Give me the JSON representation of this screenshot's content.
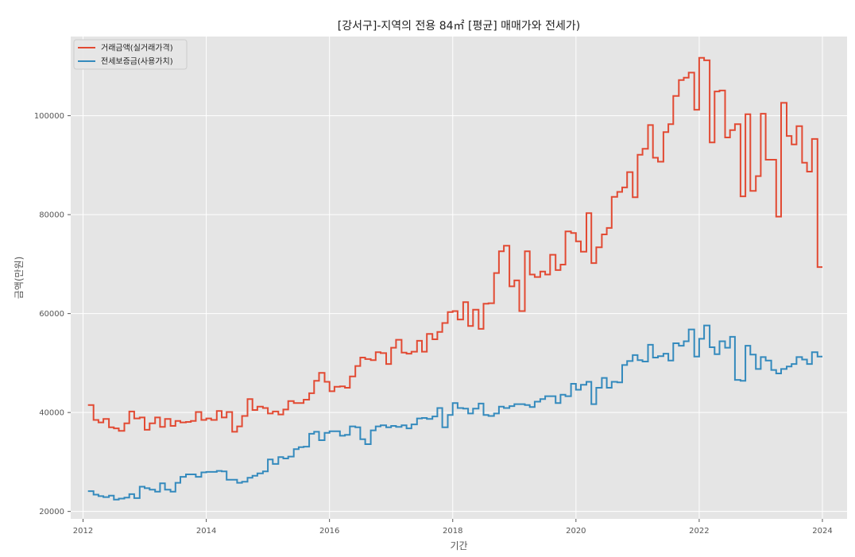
{
  "chart_data": {
    "type": "line",
    "step": true,
    "title": "[강서구]-지역의 전용 84㎡ [평균] 매매가와 전세가)",
    "xlabel": "기간",
    "ylabel": "금액(만원)",
    "xlim": [
      2011.8,
      2024.4
    ],
    "ylim": [
      18500,
      116000
    ],
    "x_ticks": [
      2012,
      2014,
      2016,
      2018,
      2020,
      2022,
      2024
    ],
    "y_ticks": [
      20000,
      40000,
      60000,
      80000,
      100000
    ],
    "grid": true,
    "legend_position": "top-left",
    "series": [
      {
        "name": "거래금액(실거래가격)",
        "color": "#E24A33",
        "points": [
          [
            2012.08,
            41500
          ],
          [
            2012.17,
            38500
          ],
          [
            2012.25,
            38000
          ],
          [
            2012.33,
            38700
          ],
          [
            2012.42,
            37000
          ],
          [
            2012.5,
            36800
          ],
          [
            2012.58,
            36300
          ],
          [
            2012.67,
            37800
          ],
          [
            2012.75,
            40200
          ],
          [
            2012.83,
            38800
          ],
          [
            2012.92,
            39000
          ],
          [
            2013.0,
            36500
          ],
          [
            2013.08,
            37800
          ],
          [
            2013.17,
            39000
          ],
          [
            2013.25,
            37100
          ],
          [
            2013.33,
            38700
          ],
          [
            2013.42,
            37300
          ],
          [
            2013.5,
            38300
          ],
          [
            2013.58,
            38000
          ],
          [
            2013.67,
            38100
          ],
          [
            2013.75,
            38300
          ],
          [
            2013.83,
            40100
          ],
          [
            2013.92,
            38500
          ],
          [
            2014.0,
            38800
          ],
          [
            2014.08,
            38500
          ],
          [
            2014.17,
            40300
          ],
          [
            2014.25,
            39000
          ],
          [
            2014.33,
            40100
          ],
          [
            2014.42,
            36100
          ],
          [
            2014.5,
            37200
          ],
          [
            2014.58,
            39300
          ],
          [
            2014.67,
            42700
          ],
          [
            2014.75,
            40500
          ],
          [
            2014.83,
            41200
          ],
          [
            2014.92,
            40900
          ],
          [
            2015.0,
            39800
          ],
          [
            2015.08,
            40200
          ],
          [
            2015.17,
            39600
          ],
          [
            2015.25,
            40600
          ],
          [
            2015.33,
            42300
          ],
          [
            2015.42,
            41900
          ],
          [
            2015.5,
            41900
          ],
          [
            2015.58,
            42600
          ],
          [
            2015.67,
            43900
          ],
          [
            2015.75,
            46400
          ],
          [
            2015.83,
            48000
          ],
          [
            2015.92,
            46200
          ],
          [
            2016.0,
            44300
          ],
          [
            2016.08,
            45200
          ],
          [
            2016.17,
            45300
          ],
          [
            2016.25,
            45000
          ],
          [
            2016.33,
            47300
          ],
          [
            2016.42,
            49400
          ],
          [
            2016.5,
            51100
          ],
          [
            2016.58,
            50800
          ],
          [
            2016.67,
            50600
          ],
          [
            2016.75,
            52200
          ],
          [
            2016.83,
            52000
          ],
          [
            2016.92,
            49800
          ],
          [
            2017.0,
            53100
          ],
          [
            2017.08,
            54700
          ],
          [
            2017.17,
            52100
          ],
          [
            2017.25,
            51900
          ],
          [
            2017.33,
            52300
          ],
          [
            2017.42,
            54500
          ],
          [
            2017.5,
            52300
          ],
          [
            2017.58,
            55900
          ],
          [
            2017.67,
            54800
          ],
          [
            2017.75,
            56300
          ],
          [
            2017.83,
            58100
          ],
          [
            2017.92,
            60300
          ],
          [
            2018.0,
            60500
          ],
          [
            2018.08,
            58800
          ],
          [
            2018.17,
            62300
          ],
          [
            2018.25,
            57500
          ],
          [
            2018.33,
            60800
          ],
          [
            2018.42,
            56900
          ],
          [
            2018.5,
            62000
          ],
          [
            2018.58,
            62100
          ],
          [
            2018.67,
            68200
          ],
          [
            2018.75,
            72600
          ],
          [
            2018.83,
            73700
          ],
          [
            2018.92,
            65500
          ],
          [
            2019.0,
            66700
          ],
          [
            2019.08,
            60500
          ],
          [
            2019.17,
            72600
          ],
          [
            2019.25,
            67900
          ],
          [
            2019.33,
            67400
          ],
          [
            2019.42,
            68500
          ],
          [
            2019.5,
            67900
          ],
          [
            2019.58,
            71900
          ],
          [
            2019.67,
            68800
          ],
          [
            2019.75,
            69900
          ],
          [
            2019.83,
            76600
          ],
          [
            2019.92,
            76300
          ],
          [
            2020.0,
            74600
          ],
          [
            2020.08,
            72500
          ],
          [
            2020.17,
            80300
          ],
          [
            2020.25,
            70200
          ],
          [
            2020.33,
            73400
          ],
          [
            2020.42,
            76000
          ],
          [
            2020.5,
            77300
          ],
          [
            2020.58,
            83600
          ],
          [
            2020.67,
            84600
          ],
          [
            2020.75,
            85500
          ],
          [
            2020.83,
            88600
          ],
          [
            2020.92,
            83500
          ],
          [
            2021.0,
            92100
          ],
          [
            2021.08,
            93300
          ],
          [
            2021.17,
            98100
          ],
          [
            2021.25,
            91500
          ],
          [
            2021.33,
            90700
          ],
          [
            2021.42,
            96700
          ],
          [
            2021.5,
            98300
          ],
          [
            2021.58,
            104000
          ],
          [
            2021.67,
            107200
          ],
          [
            2021.75,
            107700
          ],
          [
            2021.83,
            108700
          ],
          [
            2021.92,
            101200
          ],
          [
            2022.0,
            111700
          ],
          [
            2022.08,
            111200
          ],
          [
            2022.17,
            94600
          ],
          [
            2022.25,
            104900
          ],
          [
            2022.33,
            105100
          ],
          [
            2022.42,
            95600
          ],
          [
            2022.5,
            97100
          ],
          [
            2022.58,
            98300
          ],
          [
            2022.67,
            83700
          ],
          [
            2022.75,
            100300
          ],
          [
            2022.83,
            84800
          ],
          [
            2022.92,
            87800
          ],
          [
            2023.0,
            100400
          ],
          [
            2023.08,
            91100
          ],
          [
            2023.17,
            91100
          ],
          [
            2023.25,
            79600
          ],
          [
            2023.33,
            102600
          ],
          [
            2023.42,
            95900
          ],
          [
            2023.5,
            94200
          ],
          [
            2023.58,
            97900
          ],
          [
            2023.67,
            90500
          ],
          [
            2023.75,
            88700
          ],
          [
            2023.83,
            95300
          ],
          [
            2023.92,
            69400
          ],
          [
            2024.0,
            69400
          ]
        ]
      },
      {
        "name": "전세보증금(사용가치)",
        "color": "#348ABD",
        "points": [
          [
            2012.08,
            24100
          ],
          [
            2012.17,
            23400
          ],
          [
            2012.25,
            23100
          ],
          [
            2012.33,
            22900
          ],
          [
            2012.42,
            23200
          ],
          [
            2012.5,
            22400
          ],
          [
            2012.58,
            22600
          ],
          [
            2012.67,
            22800
          ],
          [
            2012.75,
            23500
          ],
          [
            2012.83,
            22700
          ],
          [
            2012.92,
            25000
          ],
          [
            2013.0,
            24700
          ],
          [
            2013.08,
            24400
          ],
          [
            2013.17,
            24000
          ],
          [
            2013.25,
            25700
          ],
          [
            2013.33,
            24400
          ],
          [
            2013.42,
            24000
          ],
          [
            2013.5,
            25800
          ],
          [
            2013.58,
            27000
          ],
          [
            2013.67,
            27500
          ],
          [
            2013.75,
            27500
          ],
          [
            2013.83,
            27000
          ],
          [
            2013.92,
            27900
          ],
          [
            2014.0,
            28000
          ],
          [
            2014.08,
            28000
          ],
          [
            2014.17,
            28200
          ],
          [
            2014.25,
            28100
          ],
          [
            2014.33,
            26400
          ],
          [
            2014.42,
            26400
          ],
          [
            2014.5,
            25800
          ],
          [
            2014.58,
            26000
          ],
          [
            2014.67,
            26800
          ],
          [
            2014.75,
            27200
          ],
          [
            2014.83,
            27700
          ],
          [
            2014.92,
            28100
          ],
          [
            2015.0,
            30500
          ],
          [
            2015.08,
            29600
          ],
          [
            2015.17,
            31000
          ],
          [
            2015.25,
            30700
          ],
          [
            2015.33,
            31100
          ],
          [
            2015.42,
            32600
          ],
          [
            2015.5,
            33000
          ],
          [
            2015.58,
            33100
          ],
          [
            2015.67,
            35700
          ],
          [
            2015.75,
            36100
          ],
          [
            2015.83,
            34400
          ],
          [
            2015.92,
            35900
          ],
          [
            2016.0,
            36200
          ],
          [
            2016.08,
            36200
          ],
          [
            2016.17,
            35300
          ],
          [
            2016.25,
            35500
          ],
          [
            2016.33,
            37200
          ],
          [
            2016.42,
            37000
          ],
          [
            2016.5,
            34600
          ],
          [
            2016.58,
            33600
          ],
          [
            2016.67,
            36400
          ],
          [
            2016.75,
            37200
          ],
          [
            2016.83,
            37400
          ],
          [
            2016.92,
            37000
          ],
          [
            2017.0,
            37300
          ],
          [
            2017.08,
            37100
          ],
          [
            2017.17,
            37400
          ],
          [
            2017.25,
            36800
          ],
          [
            2017.33,
            37600
          ],
          [
            2017.42,
            38800
          ],
          [
            2017.5,
            38900
          ],
          [
            2017.58,
            38700
          ],
          [
            2017.67,
            39200
          ],
          [
            2017.75,
            40900
          ],
          [
            2017.83,
            37000
          ],
          [
            2017.92,
            39500
          ],
          [
            2018.0,
            41900
          ],
          [
            2018.08,
            40900
          ],
          [
            2018.17,
            40800
          ],
          [
            2018.25,
            39800
          ],
          [
            2018.33,
            40800
          ],
          [
            2018.42,
            41800
          ],
          [
            2018.5,
            39500
          ],
          [
            2018.58,
            39300
          ],
          [
            2018.67,
            39800
          ],
          [
            2018.75,
            41200
          ],
          [
            2018.83,
            40900
          ],
          [
            2018.92,
            41300
          ],
          [
            2019.0,
            41700
          ],
          [
            2019.08,
            41700
          ],
          [
            2019.17,
            41500
          ],
          [
            2019.25,
            41100
          ],
          [
            2019.33,
            42200
          ],
          [
            2019.42,
            42700
          ],
          [
            2019.5,
            43300
          ],
          [
            2019.58,
            43300
          ],
          [
            2019.67,
            41900
          ],
          [
            2019.75,
            43600
          ],
          [
            2019.83,
            43300
          ],
          [
            2019.92,
            45800
          ],
          [
            2020.0,
            44600
          ],
          [
            2020.08,
            45600
          ],
          [
            2020.17,
            46200
          ],
          [
            2020.25,
            41700
          ],
          [
            2020.33,
            45000
          ],
          [
            2020.42,
            47000
          ],
          [
            2020.5,
            45000
          ],
          [
            2020.58,
            46200
          ],
          [
            2020.67,
            46100
          ],
          [
            2020.75,
            49600
          ],
          [
            2020.83,
            50400
          ],
          [
            2020.92,
            51600
          ],
          [
            2021.0,
            50600
          ],
          [
            2021.08,
            50300
          ],
          [
            2021.17,
            53700
          ],
          [
            2021.25,
            51100
          ],
          [
            2021.33,
            51400
          ],
          [
            2021.42,
            51900
          ],
          [
            2021.5,
            50500
          ],
          [
            2021.58,
            54000
          ],
          [
            2021.67,
            53500
          ],
          [
            2021.75,
            54400
          ],
          [
            2021.83,
            56800
          ],
          [
            2021.92,
            51300
          ],
          [
            2022.0,
            54900
          ],
          [
            2022.08,
            57600
          ],
          [
            2022.17,
            53200
          ],
          [
            2022.25,
            51800
          ],
          [
            2022.33,
            54400
          ],
          [
            2022.42,
            53100
          ],
          [
            2022.5,
            55300
          ],
          [
            2022.58,
            46600
          ],
          [
            2022.67,
            46400
          ],
          [
            2022.75,
            53500
          ],
          [
            2022.83,
            51700
          ],
          [
            2022.92,
            48800
          ],
          [
            2023.0,
            51200
          ],
          [
            2023.08,
            50500
          ],
          [
            2023.17,
            48600
          ],
          [
            2023.25,
            47900
          ],
          [
            2023.33,
            48800
          ],
          [
            2023.42,
            49300
          ],
          [
            2023.5,
            49800
          ],
          [
            2023.58,
            51200
          ],
          [
            2023.67,
            50700
          ],
          [
            2023.75,
            49800
          ],
          [
            2023.83,
            52200
          ],
          [
            2023.92,
            51300
          ],
          [
            2024.0,
            51300
          ]
        ]
      }
    ]
  }
}
